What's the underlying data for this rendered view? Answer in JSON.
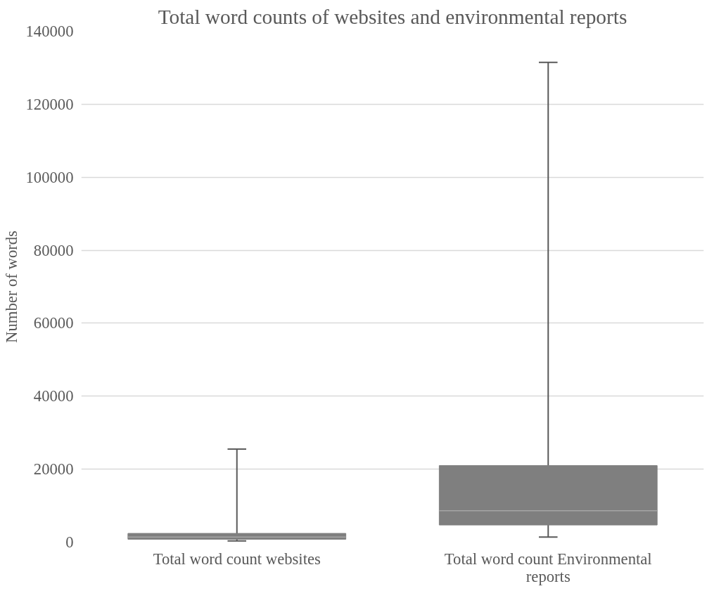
{
  "chart_data": {
    "type": "box",
    "title": "Total word counts of websites and environmental reports",
    "ylabel": "Number of words",
    "categories": [
      "Total word count websites",
      "Total word count Environmental reports"
    ],
    "series": [
      {
        "color": "#7f7f7f",
        "boxes": [
          {
            "low": 350,
            "q1": 800,
            "median": 1400,
            "q3": 2400,
            "high": 25500
          },
          {
            "low": 1400,
            "q1": 4700,
            "median": 8600,
            "q3": 21000,
            "high": 131500
          }
        ]
      }
    ],
    "ylim": [
      0,
      140000
    ],
    "yticks": [
      0,
      20000,
      40000,
      60000,
      80000,
      100000,
      120000,
      140000
    ],
    "grid": "y"
  }
}
